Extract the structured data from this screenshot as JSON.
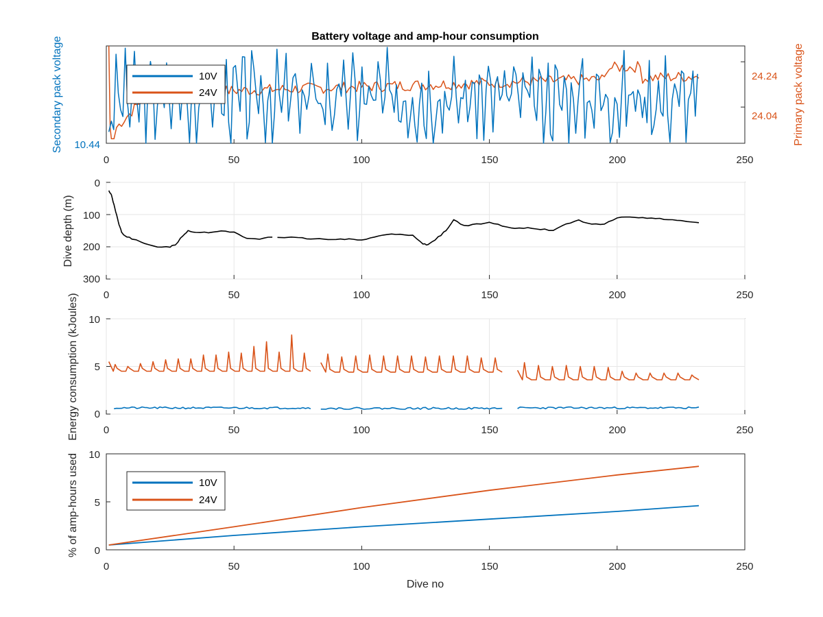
{
  "figure_title": "Battery voltage and amp-hour consumption",
  "colors": {
    "blue": "#0072BD",
    "orange": "#D95319",
    "black": "#000000",
    "grid": "#e6e6e6",
    "axis": "#262626"
  },
  "chart_data": [
    {
      "type": "line",
      "title": "Battery voltage and amp-hour consumption",
      "xlabel": "",
      "ylabel": "Secondary pack voltage",
      "ylabel_right": "Primary pack voltage",
      "xlim": [
        0,
        250
      ],
      "xticks": [
        0,
        50,
        100,
        150,
        200,
        250
      ],
      "yticks_left": [
        10.44
      ],
      "yticks_right": [
        24.04,
        24.24
      ],
      "legend": [
        "10V",
        "24V"
      ],
      "legend_position": "top-left",
      "grid": false,
      "series": [
        {
          "name": "10V",
          "axis": "left",
          "color": "#0072BD",
          "x_range": [
            1,
            232
          ],
          "trend": "noisy, oscillating between ~10.44 and ~10.75"
        },
        {
          "name": "24V",
          "axis": "right",
          "color": "#D95319",
          "x_range": [
            1,
            232
          ],
          "trend": "spike near dive 1, then rising from ~23.9 to ~24.15 with small fluctuations"
        }
      ]
    },
    {
      "type": "line",
      "xlabel": "",
      "ylabel": "Dive depth (m)",
      "xlim": [
        0,
        250
      ],
      "ylim": [
        300,
        0
      ],
      "xticks": [
        0,
        50,
        100,
        150,
        200,
        250
      ],
      "yticks": [
        0,
        100,
        200,
        300
      ],
      "grid": true,
      "series": [
        {
          "color": "#000000",
          "segments": [
            {
              "x": [
                1,
                2,
                3,
                4,
                5,
                6,
                7,
                10,
                15,
                20,
                25,
                27,
                30,
                32,
                35,
                40,
                45,
                50,
                55,
                60,
                65
              ],
              "y": [
                25,
                40,
                70,
                100,
                130,
                155,
                165,
                175,
                190,
                200,
                200,
                195,
                165,
                150,
                155,
                155,
                150,
                155,
                175,
                175,
                170
              ]
            },
            {
              "x": [
                67,
                75,
                80,
                90,
                95,
                100,
                105,
                110,
                115,
                120,
                124,
                126,
                130,
                133,
                136,
                140,
                145,
                150,
                155,
                160,
                165,
                170,
                175,
                180,
                185,
                190,
                195,
                200,
                205,
                210,
                215,
                220,
                225,
                232
              ],
              "y": [
                170,
                172,
                175,
                178,
                175,
                178,
                170,
                160,
                160,
                165,
                190,
                195,
                170,
                150,
                115,
                135,
                130,
                125,
                135,
                145,
                140,
                145,
                150,
                130,
                118,
                130,
                130,
                110,
                108,
                110,
                112,
                115,
                120,
                125
              ]
            }
          ]
        }
      ]
    },
    {
      "type": "line",
      "xlabel": "",
      "ylabel": "Energy consumption (kJoules)",
      "xlim": [
        0,
        250
      ],
      "ylim": [
        0,
        10
      ],
      "xticks": [
        0,
        50,
        100,
        150,
        200,
        250
      ],
      "yticks": [
        0,
        5,
        10
      ],
      "grid": true,
      "series": [
        {
          "color": "#D95319",
          "segments": [
            {
              "x_range": [
                1,
                80
              ],
              "baseline": 4.5,
              "peaks": [
                5.2,
                5.0,
                5.3,
                5.5,
                5.7,
                5.8,
                5.8,
                6.2,
                6.2,
                6.5,
                6.4,
                7.1,
                7.6,
                6.5,
                8.3,
                6.4
              ]
            },
            {
              "x_range": [
                84,
                155
              ],
              "baseline": 4.4,
              "peaks": [
                6.3,
                6.0,
                6.1,
                6.2,
                6.1,
                6.1,
                6.1,
                6.0,
                6.1,
                6.1,
                6.1,
                5.9,
                5.9
              ]
            },
            {
              "x_range": [
                161,
                232
              ],
              "baseline": 3.6,
              "peaks": [
                5.4,
                5.1,
                5.0,
                5.1,
                5.0,
                5.0,
                4.9,
                4.5,
                4.3,
                4.3,
                4.3,
                4.3,
                4.1
              ]
            }
          ]
        },
        {
          "color": "#0072BD",
          "segments": [
            {
              "x_range": [
                3,
                80
              ],
              "baseline": 0.65
            },
            {
              "x_range": [
                84,
                155
              ],
              "baseline": 0.6
            },
            {
              "x_range": [
                161,
                232
              ],
              "baseline": 0.65
            }
          ]
        }
      ]
    },
    {
      "type": "line",
      "xlabel": "Dive no",
      "ylabel": "% of amp-hours used",
      "xlim": [
        0,
        250
      ],
      "ylim": [
        0,
        10
      ],
      "xticks": [
        0,
        50,
        100,
        150,
        200,
        250
      ],
      "yticks": [
        0,
        5,
        10
      ],
      "legend": [
        "10V",
        "24V"
      ],
      "legend_position": "top-left",
      "grid": false,
      "series": [
        {
          "name": "10V",
          "color": "#0072BD",
          "x": [
            1,
            50,
            100,
            150,
            200,
            232
          ],
          "y": [
            0.5,
            1.5,
            2.4,
            3.2,
            4.0,
            4.6
          ]
        },
        {
          "name": "24V",
          "color": "#D95319",
          "x": [
            1,
            50,
            100,
            150,
            200,
            232
          ],
          "y": [
            0.5,
            2.4,
            4.4,
            6.2,
            7.8,
            8.7
          ]
        }
      ]
    }
  ]
}
